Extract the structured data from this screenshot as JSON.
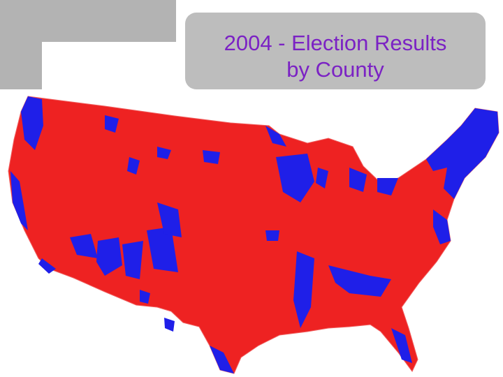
{
  "title_lines": [
    "2004 - Election Results",
    "by County"
  ]
}
